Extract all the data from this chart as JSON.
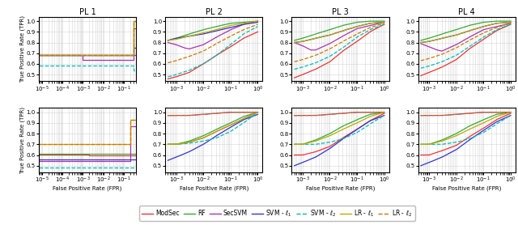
{
  "titles": [
    "PL 1",
    "PL 2",
    "PL 3",
    "PL 4"
  ],
  "ylabel": "True Positive Rate (TPR)",
  "xlabel": "False Positive Rate (FPR)",
  "colors": {
    "ModSec": "#EE3333",
    "RF": "#33AA33",
    "SecSVM": "#AA33AA",
    "SVM_l1": "#3333CC",
    "SVM_l2": "#00BBBB",
    "LR_l1": "#BBAA00",
    "LR_l2": "#CC7700"
  },
  "yticks": [
    0.5,
    0.6,
    0.7,
    0.8,
    0.9,
    1.0
  ],
  "ylim": [
    0.44,
    1.04
  ]
}
